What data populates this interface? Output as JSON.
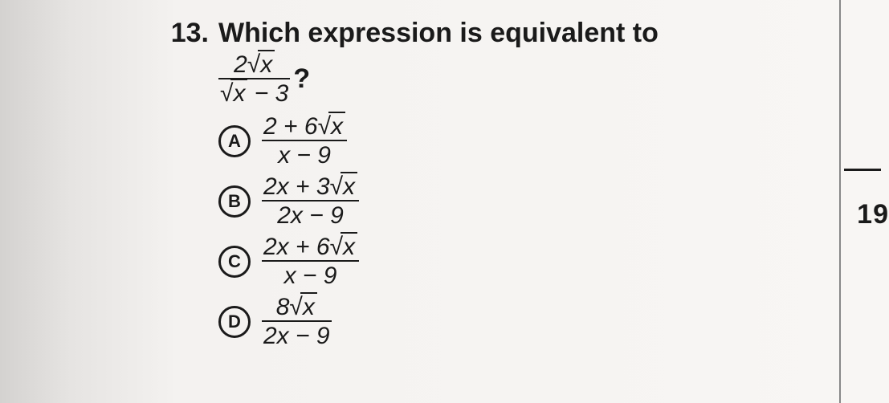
{
  "question": {
    "number": "13.",
    "stem": "Which expression is equivalent to",
    "expr": {
      "num_coef": "2",
      "num_rad": "x",
      "den_rad": "x",
      "den_tail": " − 3"
    },
    "qmark": "?"
  },
  "options": [
    {
      "letter": "A",
      "num_pre": "2 + 6",
      "num_rad": "x",
      "den": "x − 9"
    },
    {
      "letter": "B",
      "num_pre": "2x + 3",
      "num_rad": "x",
      "den": "2x − 9"
    },
    {
      "letter": "C",
      "num_pre": "2x + 6",
      "num_rad": "x",
      "den": "x − 9"
    },
    {
      "letter": "D",
      "num_pre": "8",
      "num_rad": "x",
      "den": "2x − 9"
    }
  ],
  "side_cut_number": "19",
  "colors": {
    "text": "#1a1a1a",
    "bg": "#f4f2f0"
  }
}
